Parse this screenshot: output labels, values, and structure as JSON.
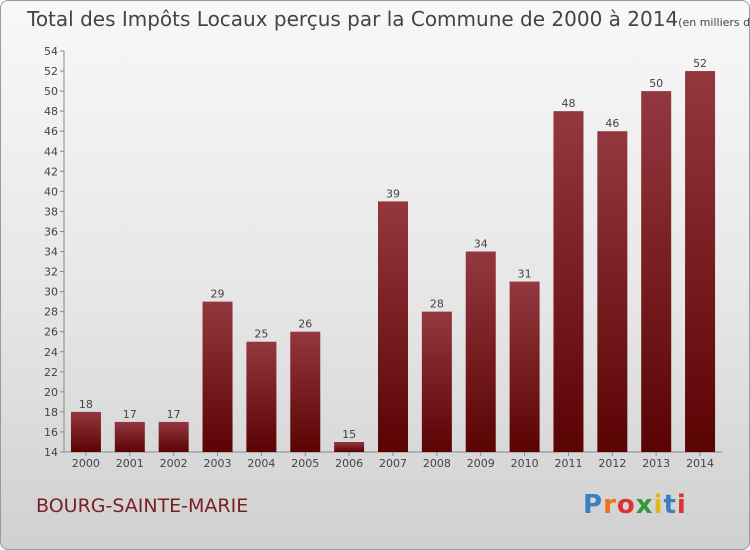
{
  "chart_data": {
    "type": "bar",
    "title": "Total des Impôts Locaux perçus par la Commune de 2000 à 2014",
    "unit_note": "(en milliers d'€)",
    "categories": [
      "2000",
      "2001",
      "2002",
      "2003",
      "2004",
      "2005",
      "2006",
      "2007",
      "2008",
      "2009",
      "2010",
      "2011",
      "2012",
      "2013",
      "2014"
    ],
    "values": [
      18,
      17,
      17,
      29,
      25,
      26,
      15,
      39,
      28,
      34,
      31,
      48,
      46,
      50,
      52
    ],
    "xlabel": "",
    "ylabel": "",
    "ylim": [
      14,
      54
    ],
    "ytick_step": 2,
    "grid": false,
    "bar_color_light": "#94383f",
    "bar_color_dark": "#5a0303"
  },
  "commune": "BOURG-SAINTE-MARIE",
  "logo": {
    "letters": [
      "P",
      "r",
      "o",
      "x",
      "i",
      "t",
      "i"
    ],
    "colors": [
      "#3a7fc4",
      "#e8731c",
      "#e03030",
      "#2f9a3a",
      "#e0b81c",
      "#3a7fc4",
      "#e03030"
    ]
  }
}
